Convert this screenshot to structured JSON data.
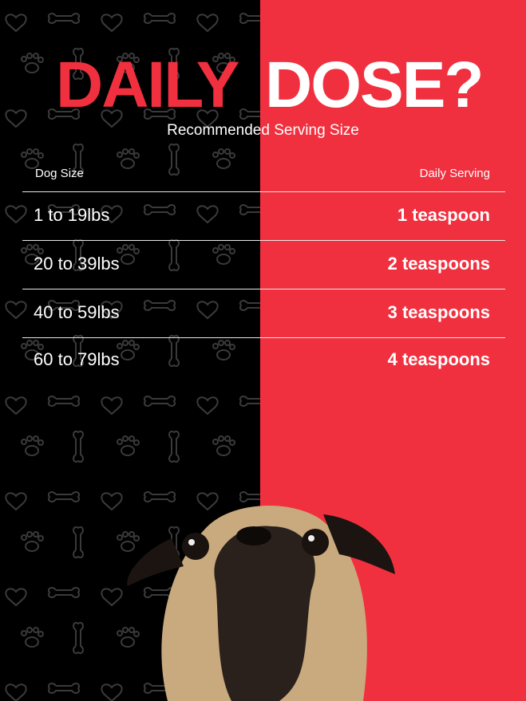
{
  "title": {
    "part1": "DAILY",
    "part2": "DOSE?"
  },
  "subtitle": "Recommended Serving Size",
  "table": {
    "headers": {
      "size": "Dog Size",
      "serving": "Daily Serving"
    },
    "rows": [
      {
        "size": "1 to 19lbs",
        "serving": "1 teaspoon"
      },
      {
        "size": "20 to 39lbs",
        "serving": "2 teaspoons"
      },
      {
        "size": "40 to 59lbs",
        "serving": "3 teaspoons"
      },
      {
        "size": "60 to 79lbs",
        "serving": "4 teaspoons"
      }
    ]
  },
  "colors": {
    "accent": "#f1303f",
    "dark": "#000000",
    "text": "#ffffff"
  },
  "decor": {
    "pattern_icons": [
      "heart-icon",
      "bone-icon",
      "paw-icon"
    ],
    "image": "pug-photo"
  }
}
